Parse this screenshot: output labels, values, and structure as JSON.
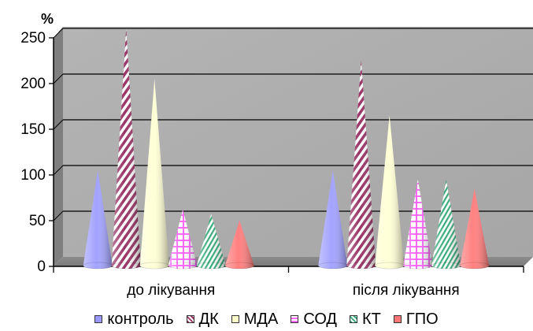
{
  "chart_data": {
    "type": "bar",
    "bar_shape": "cone",
    "unit_label": "%",
    "categories": [
      "до лікування",
      "після лікування"
    ],
    "ylim": [
      0,
      250
    ],
    "yticks": [
      0,
      50,
      100,
      150,
      200,
      250
    ],
    "grid": true,
    "legend_position": "bottom",
    "series": [
      {
        "name": "контроль",
        "values": [
          100,
          100
        ],
        "color": "#9999ff",
        "pattern": "solid"
      },
      {
        "name": "ДК",
        "values": [
          255,
          220
        ],
        "color": "#993366",
        "pattern": "diagonal-stripes"
      },
      {
        "name": "МДА",
        "values": [
          200,
          160
        ],
        "color": "#ffffcc",
        "pattern": "solid"
      },
      {
        "name": "СОД",
        "values": [
          57,
          90
        ],
        "color": "#ff66ff",
        "pattern": "checker"
      },
      {
        "name": "КТ",
        "values": [
          52,
          90
        ],
        "color": "#33aa77",
        "pattern": "diagonal-stripes"
      },
      {
        "name": "ГПО",
        "values": [
          45,
          80
        ],
        "color": "#ff7777",
        "pattern": "solid"
      }
    ]
  }
}
